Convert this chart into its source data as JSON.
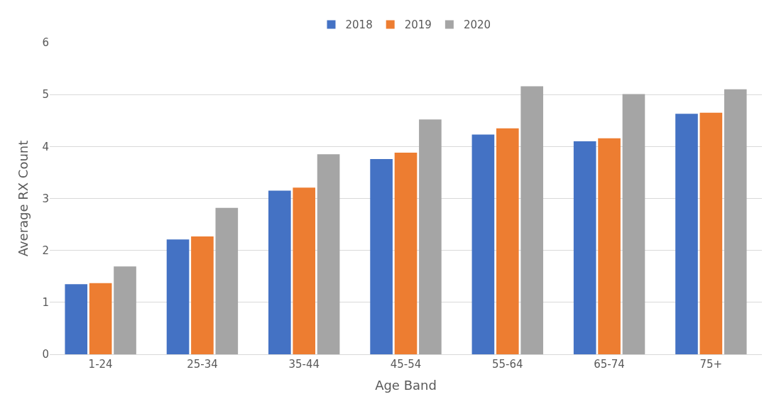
{
  "chart_data": {
    "type": "bar",
    "xlabel": "Age Band",
    "ylabel": "Average RX Count",
    "categories": [
      "1-24",
      "25-34",
      "35-44",
      "45-54",
      "55-64",
      "65-74",
      "75+"
    ],
    "series": [
      {
        "name": "2018",
        "color": "#4472c4",
        "values": [
          1.35,
          2.21,
          3.15,
          3.76,
          4.23,
          4.1,
          4.63
        ]
      },
      {
        "name": "2019",
        "color": "#ed7d31",
        "values": [
          1.37,
          2.27,
          3.21,
          3.88,
          4.35,
          4.16,
          4.65
        ]
      },
      {
        "name": "2020",
        "color": "#a5a5a5",
        "values": [
          1.69,
          2.82,
          3.85,
          4.52,
          5.16,
          5.01,
          5.1
        ]
      }
    ],
    "ylim": [
      0,
      6
    ],
    "yticks": [
      0,
      1,
      2,
      3,
      4,
      5,
      6
    ],
    "grid": "y",
    "legend": "top"
  }
}
